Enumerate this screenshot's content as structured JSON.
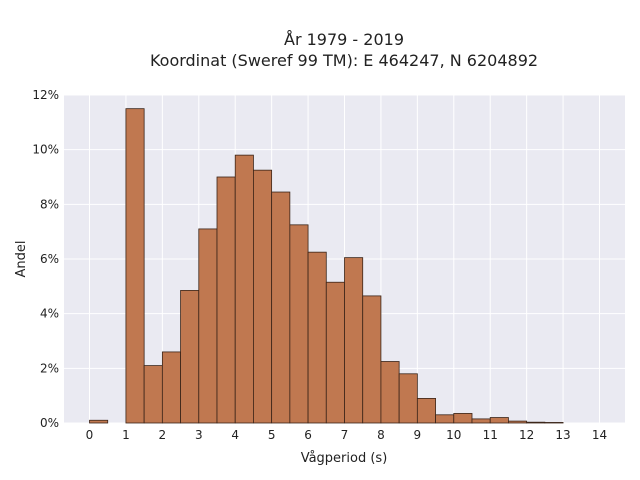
{
  "chart_data": {
    "type": "bar",
    "title_line1": "År 1979 - 2019",
    "title_line2": "Koordinat (Sweref 99 TM): E 464247, N 6204892",
    "xlabel": "Vågperiod (s)",
    "ylabel": "Andel",
    "bin_width": 0.5,
    "bins": [
      {
        "x0": 0.0,
        "value": 0.1
      },
      {
        "x0": 0.5,
        "value": 0.0
      },
      {
        "x0": 1.0,
        "value": 11.5
      },
      {
        "x0": 1.5,
        "value": 2.1
      },
      {
        "x0": 2.0,
        "value": 2.6
      },
      {
        "x0": 2.5,
        "value": 4.85
      },
      {
        "x0": 3.0,
        "value": 7.1
      },
      {
        "x0": 3.5,
        "value": 9.0
      },
      {
        "x0": 4.0,
        "value": 9.8
      },
      {
        "x0": 4.5,
        "value": 9.25
      },
      {
        "x0": 5.0,
        "value": 8.45
      },
      {
        "x0": 5.5,
        "value": 7.25
      },
      {
        "x0": 6.0,
        "value": 6.25
      },
      {
        "x0": 6.5,
        "value": 5.15
      },
      {
        "x0": 7.0,
        "value": 6.05
      },
      {
        "x0": 7.5,
        "value": 4.65
      },
      {
        "x0": 8.0,
        "value": 2.25
      },
      {
        "x0": 8.5,
        "value": 1.8
      },
      {
        "x0": 9.0,
        "value": 0.9
      },
      {
        "x0": 9.5,
        "value": 0.3
      },
      {
        "x0": 10.0,
        "value": 0.35
      },
      {
        "x0": 10.5,
        "value": 0.15
      },
      {
        "x0": 11.0,
        "value": 0.2
      },
      {
        "x0": 11.5,
        "value": 0.07
      },
      {
        "x0": 12.0,
        "value": 0.03
      },
      {
        "x0": 12.5,
        "value": 0.02
      }
    ],
    "xlim": [
      -0.7,
      14.7
    ],
    "ylim": [
      0,
      12
    ],
    "xticks": [
      0,
      1,
      2,
      3,
      4,
      5,
      6,
      7,
      8,
      9,
      10,
      11,
      12,
      13,
      14
    ],
    "yticks": [
      0,
      2,
      4,
      6,
      8,
      10,
      12
    ],
    "ytick_labels": [
      "0%",
      "2%",
      "4%",
      "6%",
      "8%",
      "10%",
      "12%"
    ],
    "grid": true,
    "colors": {
      "bar_fill": "#c07850",
      "bar_edge": "#3a2418",
      "plot_bg": "#eaeaf2",
      "grid": "#ffffff"
    }
  }
}
